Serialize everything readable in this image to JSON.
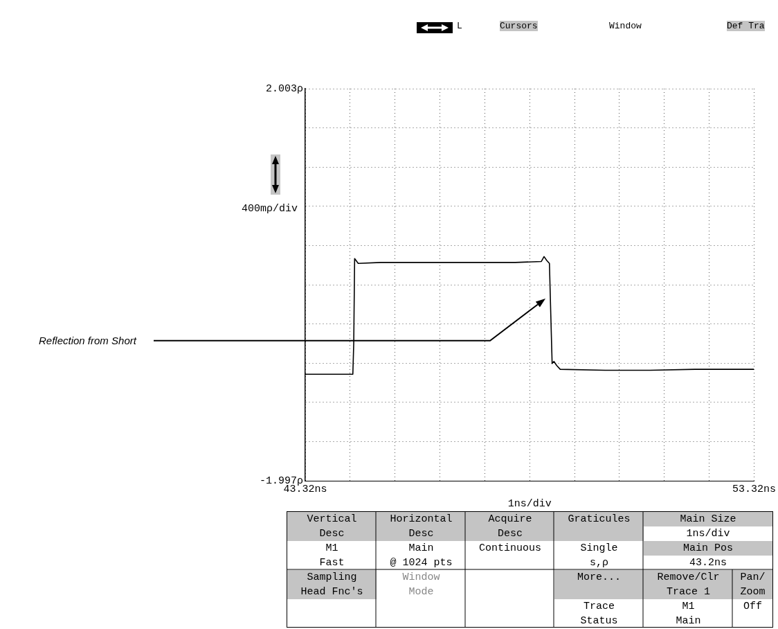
{
  "chart_data": {
    "type": "line",
    "xlabel": "1ns/div",
    "ylabel": "400mρ/div",
    "x": [
      43.32,
      44.38,
      44.4,
      44.42,
      44.5,
      45.0,
      46.0,
      47.0,
      48.0,
      48.58,
      48.64,
      48.7,
      48.76,
      48.79,
      48.82,
      48.86,
      48.92,
      49.0,
      50.0,
      51.0,
      52.0,
      53.32
    ],
    "series": [
      {
        "color": "#000000",
        "values": [
          -0.91,
          -0.91,
          -0.6,
          0.27,
          0.22,
          0.23,
          0.23,
          0.23,
          0.23,
          0.24,
          0.29,
          0.25,
          0.22,
          -0.3,
          -0.8,
          -0.78,
          -0.82,
          -0.86,
          -0.87,
          -0.87,
          -0.86,
          -0.86
        ]
      }
    ],
    "xlim": [
      43.32,
      53.32
    ],
    "xticks": [
      {
        "value": 43.32,
        "label": "43.32ns"
      },
      {
        "value": 44.32,
        "label": null
      },
      {
        "value": 45.32,
        "label": null
      },
      {
        "value": 46.32,
        "label": null
      },
      {
        "value": 47.32,
        "label": null
      },
      {
        "value": 48.32,
        "label": null
      },
      {
        "value": 49.32,
        "label": null
      },
      {
        "value": 50.32,
        "label": null
      },
      {
        "value": 51.32,
        "label": null
      },
      {
        "value": 52.32,
        "label": null
      },
      {
        "value": 53.32,
        "label": "53.32ns"
      }
    ],
    "ylim": [
      -1.997,
      2.003
    ],
    "yticks": [
      {
        "value": -1.997,
        "label": "-1.997ρ"
      },
      {
        "value": -1.597,
        "label": null
      },
      {
        "value": -1.197,
        "label": null
      },
      {
        "value": -0.797,
        "label": null
      },
      {
        "value": -0.397,
        "label": null
      },
      {
        "value": 0.003,
        "label": null
      },
      {
        "value": 0.403,
        "label": null
      },
      {
        "value": 0.803,
        "label": null
      },
      {
        "value": 1.203,
        "label": null
      },
      {
        "value": 1.603,
        "label": null
      },
      {
        "value": 2.003,
        "label": "2.003ρ"
      }
    ],
    "grid": true,
    "annotations": [
      "L",
      "Cursors",
      "Window",
      "Def Tra",
      "Reflection from Short",
      "Vertical",
      "Desc",
      "M1",
      "Fast",
      "Horizontal",
      "Desc",
      "Main",
      "@ 1024 pts",
      "Acquire",
      "Desc",
      "Continuous",
      "Graticules",
      "Single",
      "s,ρ",
      "Main Size",
      "1ns/div",
      "Main Pos",
      "43.2ns",
      "Sampling",
      "Head Fnc's",
      "Window",
      "Mode",
      "More...",
      "Trace",
      "Status",
      "Remove/Clr",
      "Trace 1",
      "M1",
      "Main",
      "Pan/",
      "Zoom",
      "Off"
    ]
  }
}
